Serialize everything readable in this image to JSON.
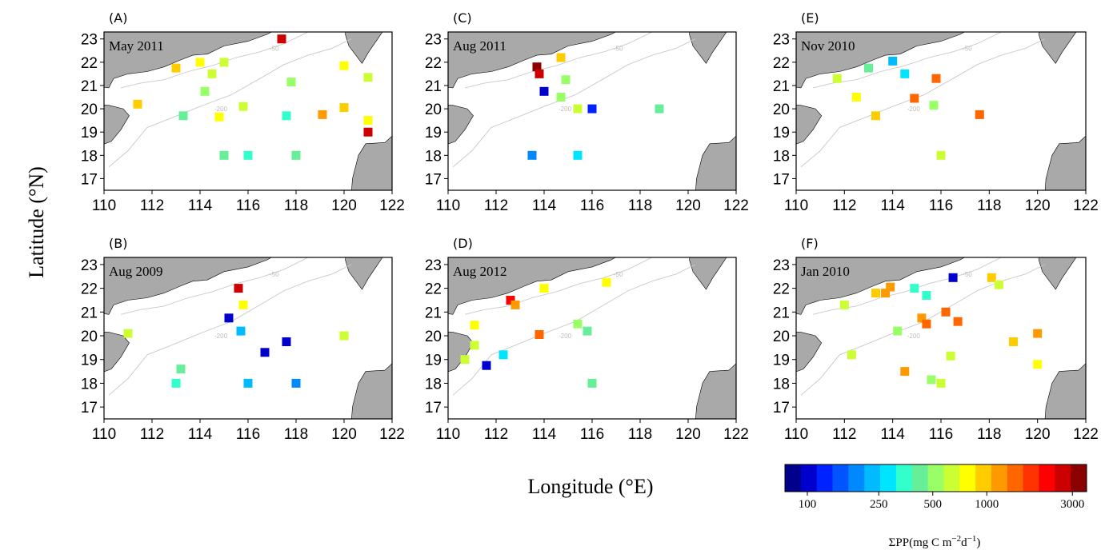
{
  "figure": {
    "ylabel": "Latitude (°N)",
    "xlabel": "Longitude (°E)",
    "colorbar": {
      "title": "ΣPP(mg C m",
      "title_sup1": "−2",
      "title_mid": "d",
      "title_sup2": "−1",
      "title_end": ")",
      "tick_labels": [
        "100",
        "250",
        "500",
        "1000",
        "3000"
      ],
      "tick_values": [
        100,
        250,
        500,
        1000,
        3000
      ],
      "colors": [
        "#00008b",
        "#0000cd",
        "#0022ff",
        "#0055ff",
        "#0088ff",
        "#00bbff",
        "#00e5ff",
        "#33ffcc",
        "#66ee99",
        "#99ff66",
        "#ccff33",
        "#ffff00",
        "#ffcc00",
        "#ff9900",
        "#ff6600",
        "#ff3300",
        "#ff0000",
        "#cc0000",
        "#8b0000"
      ]
    },
    "contour_labels": [
      "-50",
      "-200"
    ]
  },
  "chart_data": [
    {
      "type": "scatter",
      "panel": "(A)",
      "title": "May 2011",
      "xlim": [
        110,
        122
      ],
      "ylim": [
        16.5,
        23.3
      ],
      "xticks": [
        "110",
        "112",
        "114",
        "116",
        "118",
        "120",
        "122"
      ],
      "yticks": [
        "17",
        "18",
        "19",
        "20",
        "21",
        "22",
        "23"
      ],
      "points": [
        {
          "lon": 117.4,
          "lat": 23.0,
          "pp": 2600
        },
        {
          "lon": 113.0,
          "lat": 21.75,
          "pp": 1000
        },
        {
          "lon": 114.0,
          "lat": 22.0,
          "pp": 800
        },
        {
          "lon": 115.0,
          "lat": 22.0,
          "pp": 650
        },
        {
          "lon": 114.5,
          "lat": 21.5,
          "pp": 700
        },
        {
          "lon": 114.2,
          "lat": 20.75,
          "pp": 500
        },
        {
          "lon": 111.4,
          "lat": 20.2,
          "pp": 1000
        },
        {
          "lon": 113.3,
          "lat": 19.7,
          "pp": 450
        },
        {
          "lon": 114.8,
          "lat": 19.65,
          "pp": 800
        },
        {
          "lon": 115.8,
          "lat": 20.1,
          "pp": 600
        },
        {
          "lon": 117.8,
          "lat": 21.15,
          "pp": 550
        },
        {
          "lon": 117.6,
          "lat": 19.7,
          "pp": 350
        },
        {
          "lon": 119.1,
          "lat": 19.75,
          "pp": 1150
        },
        {
          "lon": 120.0,
          "lat": 20.05,
          "pp": 1000
        },
        {
          "lon": 120.0,
          "lat": 21.85,
          "pp": 850
        },
        {
          "lon": 121.0,
          "lat": 21.35,
          "pp": 700
        },
        {
          "lon": 121.0,
          "lat": 19.5,
          "pp": 850
        },
        {
          "lon": 121.0,
          "lat": 19.0,
          "pp": 2600
        },
        {
          "lon": 115.0,
          "lat": 18.0,
          "pp": 450
        },
        {
          "lon": 116.0,
          "lat": 18.0,
          "pp": 350
        },
        {
          "lon": 118.0,
          "lat": 18.0,
          "pp": 450
        }
      ]
    },
    {
      "type": "scatter",
      "panel": "(B)",
      "title": "Aug 2009",
      "xlim": [
        110,
        122
      ],
      "ylim": [
        16.5,
        23.3
      ],
      "xticks": [
        "110",
        "112",
        "114",
        "116",
        "118",
        "120",
        "122"
      ],
      "yticks": [
        "17",
        "18",
        "19",
        "20",
        "21",
        "22",
        "23"
      ],
      "points": [
        {
          "lon": 115.6,
          "lat": 22.0,
          "pp": 2600
        },
        {
          "lon": 115.8,
          "lat": 21.3,
          "pp": 850
        },
        {
          "lon": 115.2,
          "lat": 20.75,
          "pp": 100
        },
        {
          "lon": 115.7,
          "lat": 20.2,
          "pp": 250
        },
        {
          "lon": 117.6,
          "lat": 19.75,
          "pp": 100
        },
        {
          "lon": 116.7,
          "lat": 19.3,
          "pp": 100
        },
        {
          "lon": 111.0,
          "lat": 20.1,
          "pp": 600
        },
        {
          "lon": 113.2,
          "lat": 18.6,
          "pp": 450
        },
        {
          "lon": 113.0,
          "lat": 18.0,
          "pp": 350
        },
        {
          "lon": 116.0,
          "lat": 18.0,
          "pp": 250
        },
        {
          "lon": 118.0,
          "lat": 18.0,
          "pp": 170
        },
        {
          "lon": 120.0,
          "lat": 20.0,
          "pp": 600
        }
      ]
    },
    {
      "type": "scatter",
      "panel": "(C)",
      "title": "Aug 2011",
      "xlim": [
        110,
        122
      ],
      "ylim": [
        16.5,
        23.3
      ],
      "xticks": [
        "110",
        "112",
        "114",
        "116",
        "118",
        "120",
        "122"
      ],
      "yticks": [
        "17",
        "18",
        "19",
        "20",
        "21",
        "22",
        "23"
      ],
      "points": [
        {
          "lon": 113.7,
          "lat": 21.8,
          "pp": 3200
        },
        {
          "lon": 113.8,
          "lat": 21.5,
          "pp": 2800
        },
        {
          "lon": 114.7,
          "lat": 22.2,
          "pp": 900
        },
        {
          "lon": 114.9,
          "lat": 21.25,
          "pp": 500
        },
        {
          "lon": 114.0,
          "lat": 20.75,
          "pp": 100
        },
        {
          "lon": 114.7,
          "lat": 20.5,
          "pp": 500
        },
        {
          "lon": 115.4,
          "lat": 20.0,
          "pp": 600
        },
        {
          "lon": 116.0,
          "lat": 20.0,
          "pp": 120
        },
        {
          "lon": 118.8,
          "lat": 20.0,
          "pp": 400
        },
        {
          "lon": 113.5,
          "lat": 18.0,
          "pp": 200
        },
        {
          "lon": 115.4,
          "lat": 18.0,
          "pp": 280
        }
      ]
    },
    {
      "type": "scatter",
      "panel": "(D)",
      "title": "Aug 2012",
      "xlim": [
        110,
        122
      ],
      "ylim": [
        16.5,
        23.3
      ],
      "xticks": [
        "110",
        "112",
        "114",
        "116",
        "118",
        "120",
        "122"
      ],
      "yticks": [
        "17",
        "18",
        "19",
        "20",
        "21",
        "22",
        "23"
      ],
      "points": [
        {
          "lon": 112.6,
          "lat": 21.5,
          "pp": 2200
        },
        {
          "lon": 112.8,
          "lat": 21.3,
          "pp": 1150
        },
        {
          "lon": 114.0,
          "lat": 22.0,
          "pp": 750
        },
        {
          "lon": 116.6,
          "lat": 22.25,
          "pp": 850
        },
        {
          "lon": 111.1,
          "lat": 20.45,
          "pp": 850
        },
        {
          "lon": 111.1,
          "lat": 19.6,
          "pp": 650
        },
        {
          "lon": 110.7,
          "lat": 19.0,
          "pp": 650
        },
        {
          "lon": 111.6,
          "lat": 18.75,
          "pp": 100
        },
        {
          "lon": 112.3,
          "lat": 19.2,
          "pp": 300
        },
        {
          "lon": 113.8,
          "lat": 20.05,
          "pp": 1300
        },
        {
          "lon": 115.4,
          "lat": 20.5,
          "pp": 550
        },
        {
          "lon": 115.8,
          "lat": 20.2,
          "pp": 400
        },
        {
          "lon": 116.0,
          "lat": 18.0,
          "pp": 400
        }
      ]
    },
    {
      "type": "scatter",
      "panel": "(E)",
      "title": "Nov 2010",
      "xlim": [
        110,
        122
      ],
      "ylim": [
        16.5,
        23.3
      ],
      "xticks": [
        "110",
        "112",
        "114",
        "116",
        "118",
        "120",
        "122"
      ],
      "yticks": [
        "17",
        "18",
        "19",
        "20",
        "21",
        "22",
        "23"
      ],
      "points": [
        {
          "lon": 111.7,
          "lat": 21.3,
          "pp": 650
        },
        {
          "lon": 113.0,
          "lat": 21.75,
          "pp": 400
        },
        {
          "lon": 114.0,
          "lat": 22.05,
          "pp": 250
        },
        {
          "lon": 114.5,
          "lat": 21.5,
          "pp": 300
        },
        {
          "lon": 115.8,
          "lat": 21.3,
          "pp": 1400
        },
        {
          "lon": 112.5,
          "lat": 20.5,
          "pp": 850
        },
        {
          "lon": 114.9,
          "lat": 20.45,
          "pp": 1400
        },
        {
          "lon": 115.7,
          "lat": 20.15,
          "pp": 500
        },
        {
          "lon": 113.3,
          "lat": 19.7,
          "pp": 1000
        },
        {
          "lon": 117.6,
          "lat": 19.75,
          "pp": 1400
        },
        {
          "lon": 116.0,
          "lat": 18.0,
          "pp": 600
        }
      ]
    },
    {
      "type": "scatter",
      "panel": "(F)",
      "title": "Jan 2010",
      "xlim": [
        110,
        122
      ],
      "ylim": [
        16.5,
        23.3
      ],
      "xticks": [
        "110",
        "112",
        "114",
        "116",
        "118",
        "120",
        "122"
      ],
      "yticks": [
        "17",
        "18",
        "19",
        "20",
        "21",
        "22",
        "23"
      ],
      "points": [
        {
          "lon": 112.0,
          "lat": 21.3,
          "pp": 650
        },
        {
          "lon": 113.3,
          "lat": 21.8,
          "pp": 900
        },
        {
          "lon": 113.7,
          "lat": 21.8,
          "pp": 1150
        },
        {
          "lon": 113.9,
          "lat": 22.05,
          "pp": 1200
        },
        {
          "lon": 114.9,
          "lat": 22.0,
          "pp": 380
        },
        {
          "lon": 115.4,
          "lat": 21.7,
          "pp": 350
        },
        {
          "lon": 116.5,
          "lat": 22.45,
          "pp": 110
        },
        {
          "lon": 118.1,
          "lat": 22.45,
          "pp": 1000
        },
        {
          "lon": 118.4,
          "lat": 22.15,
          "pp": 650
        },
        {
          "lon": 115.2,
          "lat": 20.75,
          "pp": 1150
        },
        {
          "lon": 115.4,
          "lat": 20.5,
          "pp": 1300
        },
        {
          "lon": 116.2,
          "lat": 21.0,
          "pp": 1400
        },
        {
          "lon": 116.7,
          "lat": 20.6,
          "pp": 1400
        },
        {
          "lon": 114.2,
          "lat": 20.2,
          "pp": 500
        },
        {
          "lon": 112.3,
          "lat": 19.2,
          "pp": 650
        },
        {
          "lon": 116.4,
          "lat": 19.15,
          "pp": 650
        },
        {
          "lon": 114.5,
          "lat": 18.5,
          "pp": 1100
        },
        {
          "lon": 115.6,
          "lat": 18.15,
          "pp": 500
        },
        {
          "lon": 116.0,
          "lat": 18.0,
          "pp": 600
        },
        {
          "lon": 119.0,
          "lat": 19.75,
          "pp": 1000
        },
        {
          "lon": 120.0,
          "lat": 20.1,
          "pp": 1150
        },
        {
          "lon": 120.0,
          "lat": 18.8,
          "pp": 850
        }
      ]
    }
  ]
}
